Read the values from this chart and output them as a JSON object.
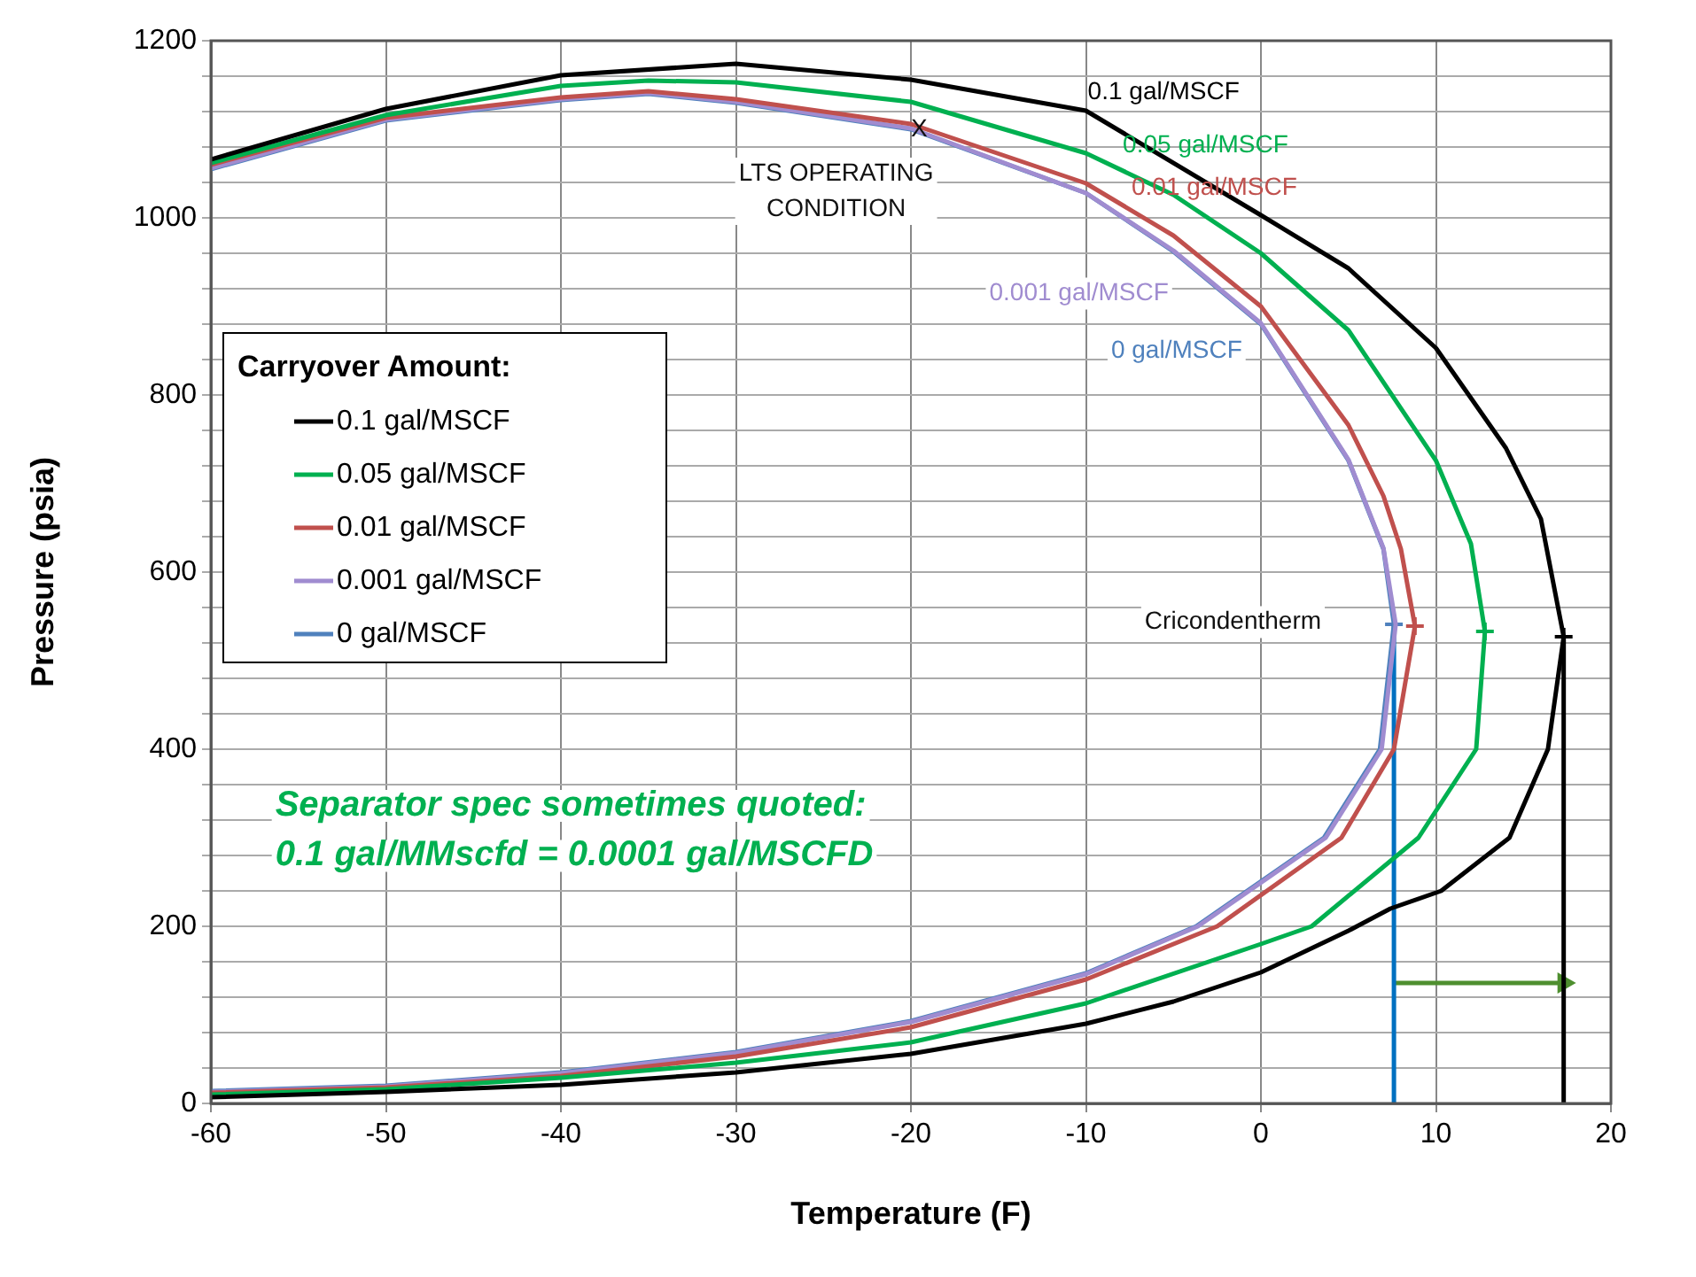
{
  "chart_data": {
    "type": "line",
    "xlabel": "Temperature (F)",
    "ylabel": "Pressure (psia)",
    "legend_title": "Carryover Amount:",
    "legend": "left",
    "grid": true,
    "marker": "none",
    "line_style": "solid",
    "xlim": [
      -60,
      20
    ],
    "xticks": [
      -60,
      -50,
      -40,
      -30,
      -20,
      -10,
      0,
      10,
      20
    ],
    "ylim": [
      0,
      1200
    ],
    "yticks": [
      0,
      {
        "value": 40,
        "label": null
      },
      {
        "value": 80,
        "label": null
      },
      {
        "value": 120,
        "label": null
      },
      {
        "value": 160,
        "label": null
      },
      200,
      {
        "value": 240,
        "label": null
      },
      {
        "value": 280,
        "label": null
      },
      {
        "value": 320,
        "label": null
      },
      {
        "value": 360,
        "label": null
      },
      400,
      {
        "value": 440,
        "label": null
      },
      {
        "value": 480,
        "label": null
      },
      {
        "value": 520,
        "label": null
      },
      {
        "value": 560,
        "label": null
      },
      600,
      {
        "value": 640,
        "label": null
      },
      {
        "value": 680,
        "label": null
      },
      {
        "value": 720,
        "label": null
      },
      {
        "value": 760,
        "label": null
      },
      800,
      {
        "value": 840,
        "label": null
      },
      {
        "value": 880,
        "label": null
      },
      {
        "value": 920,
        "label": null
      },
      {
        "value": 960,
        "label": null
      },
      1000,
      {
        "value": 1040,
        "label": null
      },
      {
        "value": 1080,
        "label": null
      },
      {
        "value": 1120,
        "label": null
      },
      {
        "value": 1160,
        "label": null
      },
      1200
    ],
    "series": [
      {
        "name": "0.1 gal/MSCF",
        "color": "#000000",
        "x": [
          -60,
          -50,
          -40,
          -30,
          -20,
          -10,
          0,
          5,
          10,
          14,
          16,
          17.3,
          16.4,
          14.2,
          10.3,
          7.4,
          5,
          0,
          -5,
          -10,
          -20,
          -30,
          -40,
          -50,
          -60
        ],
        "values": [
          1066,
          1123,
          1161,
          1174,
          1156,
          1121,
          1003,
          943,
          853,
          740,
          660,
          527,
          400,
          300,
          240,
          220,
          195,
          148,
          115,
          90,
          56,
          35,
          21,
          13,
          7
        ]
      },
      {
        "name": "0.05 gal/MSCF",
        "color": "#00b050",
        "x": [
          -60,
          -50,
          -40,
          -35,
          -30,
          -20,
          -10,
          -5,
          0,
          5,
          10,
          12,
          12.8,
          12.3,
          9,
          2.9,
          0,
          -10,
          -20,
          -30,
          -40,
          -50,
          -60
        ],
        "values": [
          1062,
          1116,
          1149,
          1155,
          1153,
          1131,
          1073,
          1026,
          960,
          873,
          726,
          632,
          533,
          400,
          300,
          200,
          180,
          113,
          69,
          46,
          29,
          16,
          10
        ]
      },
      {
        "name": "0.01 gal/MSCF",
        "color": "#c0504d",
        "x": [
          -60,
          -50,
          -40,
          -35,
          -30,
          -20,
          -10,
          -5,
          0,
          5,
          7,
          8,
          8.8,
          7.6,
          4.6,
          -2.5,
          -10,
          -20,
          -30,
          -40,
          -50,
          -60
        ],
        "values": [
          1060,
          1113,
          1136,
          1143,
          1134,
          1106,
          1039,
          980,
          900,
          766,
          686,
          626,
          539,
          400,
          300,
          200,
          140,
          86,
          53,
          31,
          18,
          12
        ]
      },
      {
        "name": "0.001 gal/MSCF",
        "color": "#a08cd0",
        "x": [
          -60,
          -50,
          -40,
          -35,
          -30,
          -20,
          -10,
          -5,
          0,
          5,
          7,
          7.7,
          6.9,
          3.7,
          -3.6,
          -10,
          -20,
          -30,
          -40,
          -50,
          -60
        ],
        "values": [
          1056,
          1111,
          1134,
          1141,
          1131,
          1101,
          1028,
          963,
          881,
          727,
          627,
          541,
          400,
          300,
          200,
          146,
          92,
          57,
          34,
          19,
          13
        ]
      },
      {
        "name": "0 gal/MSCF",
        "color": "#4f81bd",
        "x": [
          -60,
          -50,
          -40,
          -35,
          -30,
          -20,
          -10,
          -5,
          0,
          5,
          7,
          7.6,
          6.8,
          3.6,
          -3.7,
          -10,
          -20,
          -30,
          -40,
          -50,
          -60
        ],
        "values": [
          1055,
          1110,
          1133,
          1140,
          1130,
          1100,
          1028,
          962,
          880,
          726,
          626,
          541,
          400,
          300,
          200,
          147,
          93,
          58,
          35,
          20,
          14
        ]
      },
      {
        "color": "#0070c0",
        "x": [
          7.6,
          7.6
        ],
        "values": [
          0,
          541
        ]
      },
      {
        "color": "#000000",
        "x": [
          17.3,
          17.3
        ],
        "values": [
          0,
          527
        ]
      },
      {
        "type": "scatter",
        "marker": "cross",
        "x": [
          7.6,
          8.8,
          12.8,
          17.3
        ],
        "values": [
          541,
          539,
          533,
          527
        ],
        "colors": [
          "#4f81bd",
          "#c0504d",
          "#00b050",
          "#000000"
        ]
      },
      {
        "color": "#4e8f2f",
        "marker": "triangle",
        "x": [
          7.6,
          17.3
        ],
        "values": [
          136,
          136
        ]
      }
    ],
    "annotations": [
      {
        "text": "0.1 gal/MSCF",
        "x": -10.5,
        "y": 1120
      },
      {
        "text": "0.05 gal/MSCF",
        "x": -8.5,
        "y": 1060
      },
      {
        "text": "0.01 gal/MSCF",
        "x": -8,
        "y": 1012
      },
      "0.001 gal/MSCF",
      "0 gal/MSCF",
      {
        "text": "X",
        "x": -20,
        "y": 1100
      },
      "LTS OPERATING\nCONDITION",
      "Cricondentherm",
      "Separator spec sometimes quoted:",
      "0.1 gal/MMscfd = 0.0001 gal/MSCFD"
    ]
  }
}
